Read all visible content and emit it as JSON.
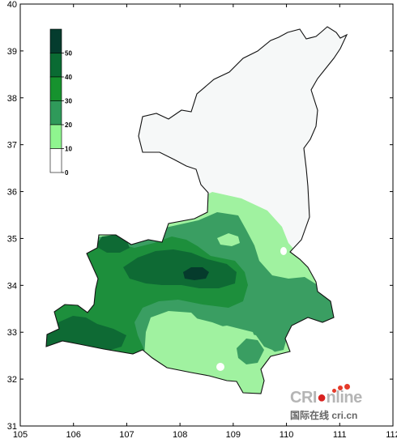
{
  "axes": {
    "x_ticks": [
      "105",
      "106",
      "107",
      "108",
      "109",
      "110",
      "111",
      "112"
    ],
    "y_ticks": [
      "40",
      "39",
      "38",
      "37",
      "36",
      "35",
      "34",
      "33",
      "32",
      "31"
    ]
  },
  "legend": {
    "levels": [
      "50",
      "40",
      "30",
      "20",
      "10",
      "0"
    ],
    "colors": [
      "#043c2e",
      "#0a6b33",
      "#16922e",
      "#2f9a5a",
      "#8ff58f",
      "#ffffff"
    ]
  },
  "watermark": {
    "brand_a": "CRI",
    "brand_b": "nline",
    "caption": "国际在线 cri.cn"
  },
  "colors": {
    "zone_0_10": "#f6f8f8",
    "zone_10_20": "#a0f2a0",
    "zone_20_30": "#3a9e62",
    "zone_30_40": "#1d8f3c",
    "zone_40_50": "#0e6a34",
    "zone_50_plus": "#053b2c"
  }
}
